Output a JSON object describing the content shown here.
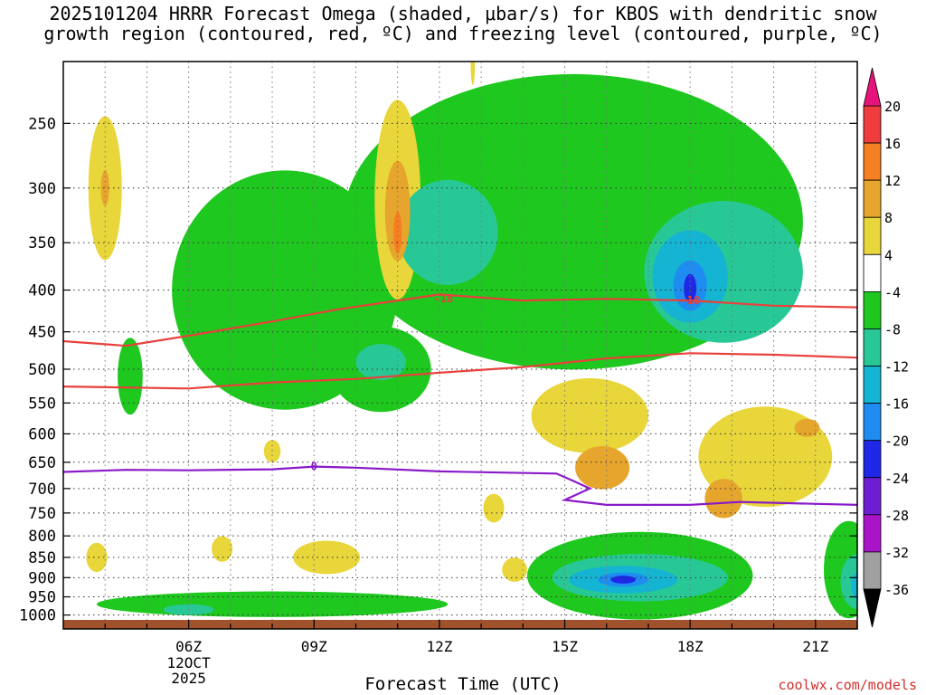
{
  "title_line1": "2025101204 HRRR Forecast Omega (shaded, μbar/s) for KBOS with dendritic snow",
  "title_line2": "growth region (contoured, red, ºC) and freezing level (contoured, purple, ºC)",
  "watermark": "coolwx.com/models",
  "chart_data": {
    "type": "area",
    "title": "2025101204 HRRR Forecast Omega (shaded, μbar/s) for KBOS with dendritic snow growth region (contoured, red, ºC) and freezing level (contoured, purple, ºC)",
    "xlabel": "Forecast Time (UTC)",
    "ylabel": "",
    "x_ticks": [
      "06Z",
      "09Z",
      "12Z",
      "15Z",
      "18Z",
      "21Z"
    ],
    "x_date_label": [
      "12OCT",
      "2025"
    ],
    "x_range_hours": [
      3,
      22
    ],
    "y_ticks": [
      250,
      300,
      350,
      400,
      450,
      500,
      550,
      600,
      650,
      700,
      750,
      800,
      850,
      900,
      950,
      1000
    ],
    "y_scale": "log-pressure (inverted)",
    "grid": true,
    "colorbar": {
      "labels": [
        20,
        16,
        12,
        8,
        4,
        -4,
        -8,
        -12,
        -16,
        -20,
        -24,
        -28,
        -32,
        -36
      ],
      "bins": [
        {
          "lo": 16,
          "hi": 20,
          "color": "#f03c3c"
        },
        {
          "lo": 12,
          "hi": 16,
          "color": "#f57f22"
        },
        {
          "lo": 8,
          "hi": 12,
          "color": "#e6a52d"
        },
        {
          "lo": 4,
          "hi": 8,
          "color": "#e8d63a"
        },
        {
          "lo": -4,
          "hi": 4,
          "color": "#ffffff"
        },
        {
          "lo": -8,
          "hi": -4,
          "color": "#1ec81e"
        },
        {
          "lo": -12,
          "hi": -8,
          "color": "#28c896"
        },
        {
          "lo": -16,
          "hi": -12,
          "color": "#14b4d2"
        },
        {
          "lo": -20,
          "hi": -16,
          "color": "#1e8cf0"
        },
        {
          "lo": -24,
          "hi": -20,
          "color": "#1e28e6"
        },
        {
          "lo": -28,
          "hi": -24,
          "color": "#6e1ed2"
        },
        {
          "lo": -32,
          "hi": -28,
          "color": "#aa14c8"
        },
        {
          "lo": -36,
          "hi": -32,
          "color": "#a0a0a0"
        }
      ],
      "over_color": "#e6147a",
      "under_color": "#000000"
    },
    "dgz_contours": [
      {
        "label": "-18",
        "color": "#e8413c",
        "points": [
          [
            3,
            462
          ],
          [
            4.5,
            468
          ],
          [
            6,
            455
          ],
          [
            8,
            437
          ],
          [
            9.5,
            423
          ],
          [
            11,
            412
          ],
          [
            12,
            405
          ],
          [
            14,
            412
          ],
          [
            16,
            410
          ],
          [
            18,
            412
          ],
          [
            20,
            418
          ],
          [
            22,
            420
          ]
        ]
      },
      {
        "label": "",
        "color": "#e8413c",
        "points": [
          [
            3,
            525
          ],
          [
            6,
            528
          ],
          [
            8,
            519
          ],
          [
            10,
            514
          ],
          [
            12,
            505
          ],
          [
            14,
            497
          ],
          [
            16,
            485
          ],
          [
            18,
            478
          ],
          [
            20,
            480
          ],
          [
            22,
            484
          ]
        ]
      }
    ],
    "freezing_level": {
      "label": "0",
      "color": "#8a1ac8",
      "points": [
        [
          3,
          668
        ],
        [
          4.5,
          664
        ],
        [
          6,
          665
        ],
        [
          8,
          663
        ],
        [
          9,
          658
        ],
        [
          10,
          660
        ],
        [
          12,
          667
        ],
        [
          14.8,
          671
        ],
        [
          15.2,
          685
        ],
        [
          15.6,
          700
        ],
        [
          15.0,
          723
        ],
        [
          16,
          733
        ],
        [
          18,
          733
        ],
        [
          19.2,
          727
        ],
        [
          22,
          733
        ]
      ]
    },
    "omega_regions": [
      {
        "band": 4,
        "center": [
          4.0,
          300
        ],
        "rx": 0.4,
        "ry": 60
      },
      {
        "band": 4,
        "center": [
          11.0,
          310
        ],
        "rx": 0.55,
        "ry": 85
      },
      {
        "band": 4,
        "center": [
          12.8,
          212
        ],
        "rx": 0.05,
        "ry": 12
      },
      {
        "band": 4,
        "center": [
          15.6,
          570
        ],
        "rx": 1.4,
        "ry": 60
      },
      {
        "band": 4,
        "center": [
          19.8,
          640
        ],
        "rx": 1.6,
        "ry": 90
      },
      {
        "band": 4,
        "center": [
          9.3,
          850
        ],
        "rx": 0.8,
        "ry": 40
      },
      {
        "band": 4,
        "center": [
          3.8,
          850
        ],
        "rx": 0.25,
        "ry": 35
      },
      {
        "band": 4,
        "center": [
          13.8,
          880
        ],
        "rx": 0.3,
        "ry": 30
      },
      {
        "band": 4,
        "center": [
          13.3,
          740
        ],
        "rx": 0.25,
        "ry": 30
      },
      {
        "band": 4,
        "center": [
          8.0,
          630
        ],
        "rx": 0.2,
        "ry": 20
      },
      {
        "band": 4,
        "center": [
          6.8,
          830
        ],
        "rx": 0.25,
        "ry": 30
      },
      {
        "band": 5,
        "center": [
          4.0,
          300
        ],
        "rx": 0.1,
        "ry": 15
      },
      {
        "band": 5,
        "center": [
          11.0,
          320
        ],
        "rx": 0.3,
        "ry": 45
      },
      {
        "band": 5,
        "center": [
          15.9,
          660
        ],
        "rx": 0.65,
        "ry": 40
      },
      {
        "band": 5,
        "center": [
          18.8,
          720
        ],
        "rx": 0.45,
        "ry": 40
      },
      {
        "band": 5,
        "center": [
          20.8,
          590
        ],
        "rx": 0.3,
        "ry": 15
      },
      {
        "band": 6,
        "center": [
          11.0,
          340
        ],
        "rx": 0.1,
        "ry": 20
      },
      {
        "band": -5,
        "center": [
          15.2,
          330
        ],
        "rx": 5.5,
        "ry": 130
      },
      {
        "band": -5,
        "center": [
          8.3,
          400
        ],
        "rx": 2.7,
        "ry": 130
      },
      {
        "band": -5,
        "center": [
          10.6,
          500
        ],
        "rx": 1.2,
        "ry": 60
      },
      {
        "band": -5,
        "center": [
          16.8,
          895
        ],
        "rx": 2.7,
        "ry": 110
      },
      {
        "band": -5,
        "center": [
          8.0,
          970
        ],
        "rx": 4.2,
        "ry": 35
      },
      {
        "band": -5,
        "center": [
          21.8,
          880
        ],
        "rx": 0.6,
        "ry": 120
      },
      {
        "band": -5,
        "center": [
          4.6,
          510
        ],
        "rx": 0.3,
        "ry": 55
      },
      {
        "band": -6,
        "center": [
          18.8,
          380
        ],
        "rx": 1.9,
        "ry": 75
      },
      {
        "band": -6,
        "center": [
          10.6,
          490
        ],
        "rx": 0.6,
        "ry": 25
      },
      {
        "band": -6,
        "center": [
          12.2,
          340
        ],
        "rx": 1.2,
        "ry": 50
      },
      {
        "band": -6,
        "center": [
          16.8,
          900
        ],
        "rx": 2.1,
        "ry": 60
      },
      {
        "band": -6,
        "center": [
          22.0,
          910
        ],
        "rx": 0.4,
        "ry": 70
      },
      {
        "band": -6,
        "center": [
          6.0,
          985
        ],
        "rx": 0.6,
        "ry": 15
      },
      {
        "band": -7,
        "center": [
          18.0,
          385
        ],
        "rx": 0.9,
        "ry": 50
      },
      {
        "band": -7,
        "center": [
          16.4,
          905
        ],
        "rx": 1.3,
        "ry": 35
      },
      {
        "band": -7,
        "center": [
          22.1,
          920
        ],
        "rx": 0.25,
        "ry": 40
      },
      {
        "band": -8,
        "center": [
          18.0,
          395
        ],
        "rx": 0.4,
        "ry": 28
      },
      {
        "band": -8,
        "center": [
          16.4,
          905
        ],
        "rx": 0.6,
        "ry": 18
      },
      {
        "band": -9,
        "center": [
          18.0,
          398
        ],
        "rx": 0.15,
        "ry": 16
      },
      {
        "band": -9,
        "center": [
          16.4,
          905
        ],
        "rx": 0.3,
        "ry": 10
      }
    ]
  }
}
